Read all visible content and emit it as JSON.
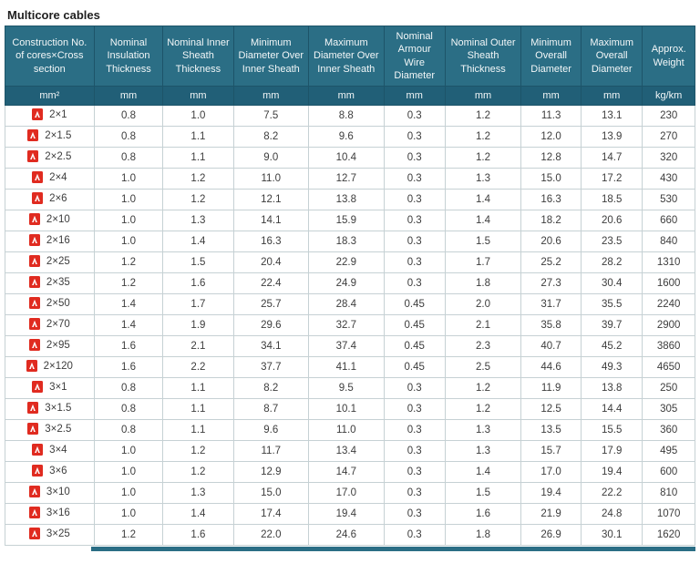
{
  "page": {
    "title": "Multicore cables"
  },
  "colors": {
    "header_bg": "#2b6e85",
    "units_row_bg": "#215f77",
    "header_text": "#f3f7f8",
    "cell_border": "#c6d1d4",
    "pdf_icon_red": "#e02b20",
    "body_text": "#3d3d3d"
  },
  "table": {
    "columns": [
      {
        "label": "Construction No. of cores×Cross section",
        "unit": "mm²"
      },
      {
        "label": "Nominal Insulation Thickness",
        "unit": "mm"
      },
      {
        "label": "Nominal Inner Sheath Thickness",
        "unit": "mm"
      },
      {
        "label": "Minimum Diameter Over Inner Sheath",
        "unit": "mm"
      },
      {
        "label": "Maximum Diameter Over Inner Sheath",
        "unit": "mm"
      },
      {
        "label": "Nominal Armour Wire Diameter",
        "unit": "mm"
      },
      {
        "label": "Nominal Outer Sheath Thickness",
        "unit": "mm"
      },
      {
        "label": "Minimum Overall Diameter",
        "unit": "mm"
      },
      {
        "label": "Maximum Overall Diameter",
        "unit": "mm"
      },
      {
        "label": "Approx. Weight",
        "unit": "kg/km"
      }
    ],
    "pdf_icon_name": "pdf-file-icon",
    "rows": [
      {
        "construction": "2×1",
        "values": [
          "0.8",
          "1.0",
          "7.5",
          "8.8",
          "0.3",
          "1.2",
          "11.3",
          "13.1",
          "230"
        ]
      },
      {
        "construction": "2×1.5",
        "values": [
          "0.8",
          "1.1",
          "8.2",
          "9.6",
          "0.3",
          "1.2",
          "12.0",
          "13.9",
          "270"
        ]
      },
      {
        "construction": "2×2.5",
        "values": [
          "0.8",
          "1.1",
          "9.0",
          "10.4",
          "0.3",
          "1.2",
          "12.8",
          "14.7",
          "320"
        ]
      },
      {
        "construction": "2×4",
        "values": [
          "1.0",
          "1.2",
          "11.0",
          "12.7",
          "0.3",
          "1.3",
          "15.0",
          "17.2",
          "430"
        ]
      },
      {
        "construction": "2×6",
        "values": [
          "1.0",
          "1.2",
          "12.1",
          "13.8",
          "0.3",
          "1.4",
          "16.3",
          "18.5",
          "530"
        ]
      },
      {
        "construction": "2×10",
        "values": [
          "1.0",
          "1.3",
          "14.1",
          "15.9",
          "0.3",
          "1.4",
          "18.2",
          "20.6",
          "660"
        ]
      },
      {
        "construction": "2×16",
        "values": [
          "1.0",
          "1.4",
          "16.3",
          "18.3",
          "0.3",
          "1.5",
          "20.6",
          "23.5",
          "840"
        ]
      },
      {
        "construction": "2×25",
        "values": [
          "1.2",
          "1.5",
          "20.4",
          "22.9",
          "0.3",
          "1.7",
          "25.2",
          "28.2",
          "1310"
        ]
      },
      {
        "construction": "2×35",
        "values": [
          "1.2",
          "1.6",
          "22.4",
          "24.9",
          "0.3",
          "1.8",
          "27.3",
          "30.4",
          "1600"
        ]
      },
      {
        "construction": "2×50",
        "values": [
          "1.4",
          "1.7",
          "25.7",
          "28.4",
          "0.45",
          "2.0",
          "31.7",
          "35.5",
          "2240"
        ]
      },
      {
        "construction": "2×70",
        "values": [
          "1.4",
          "1.9",
          "29.6",
          "32.7",
          "0.45",
          "2.1",
          "35.8",
          "39.7",
          "2900"
        ]
      },
      {
        "construction": "2×95",
        "values": [
          "1.6",
          "2.1",
          "34.1",
          "37.4",
          "0.45",
          "2.3",
          "40.7",
          "45.2",
          "3860"
        ]
      },
      {
        "construction": "2×120",
        "values": [
          "1.6",
          "2.2",
          "37.7",
          "41.1",
          "0.45",
          "2.5",
          "44.6",
          "49.3",
          "4650"
        ]
      },
      {
        "construction": "3×1",
        "values": [
          "0.8",
          "1.1",
          "8.2",
          "9.5",
          "0.3",
          "1.2",
          "11.9",
          "13.8",
          "250"
        ]
      },
      {
        "construction": "3×1.5",
        "values": [
          "0.8",
          "1.1",
          "8.7",
          "10.1",
          "0.3",
          "1.2",
          "12.5",
          "14.4",
          "305"
        ]
      },
      {
        "construction": "3×2.5",
        "values": [
          "0.8",
          "1.1",
          "9.6",
          "11.0",
          "0.3",
          "1.3",
          "13.5",
          "15.5",
          "360"
        ]
      },
      {
        "construction": "3×4",
        "values": [
          "1.0",
          "1.2",
          "11.7",
          "13.4",
          "0.3",
          "1.3",
          "15.7",
          "17.9",
          "495"
        ]
      },
      {
        "construction": "3×6",
        "values": [
          "1.0",
          "1.2",
          "12.9",
          "14.7",
          "0.3",
          "1.4",
          "17.0",
          "19.4",
          "600"
        ]
      },
      {
        "construction": "3×10",
        "values": [
          "1.0",
          "1.3",
          "15.0",
          "17.0",
          "0.3",
          "1.5",
          "19.4",
          "22.2",
          "810"
        ]
      },
      {
        "construction": "3×16",
        "values": [
          "1.0",
          "1.4",
          "17.4",
          "19.4",
          "0.3",
          "1.6",
          "21.9",
          "24.8",
          "1070"
        ]
      },
      {
        "construction": "3×25",
        "values": [
          "1.2",
          "1.6",
          "22.0",
          "24.6",
          "0.3",
          "1.8",
          "26.9",
          "30.1",
          "1620"
        ]
      }
    ]
  }
}
